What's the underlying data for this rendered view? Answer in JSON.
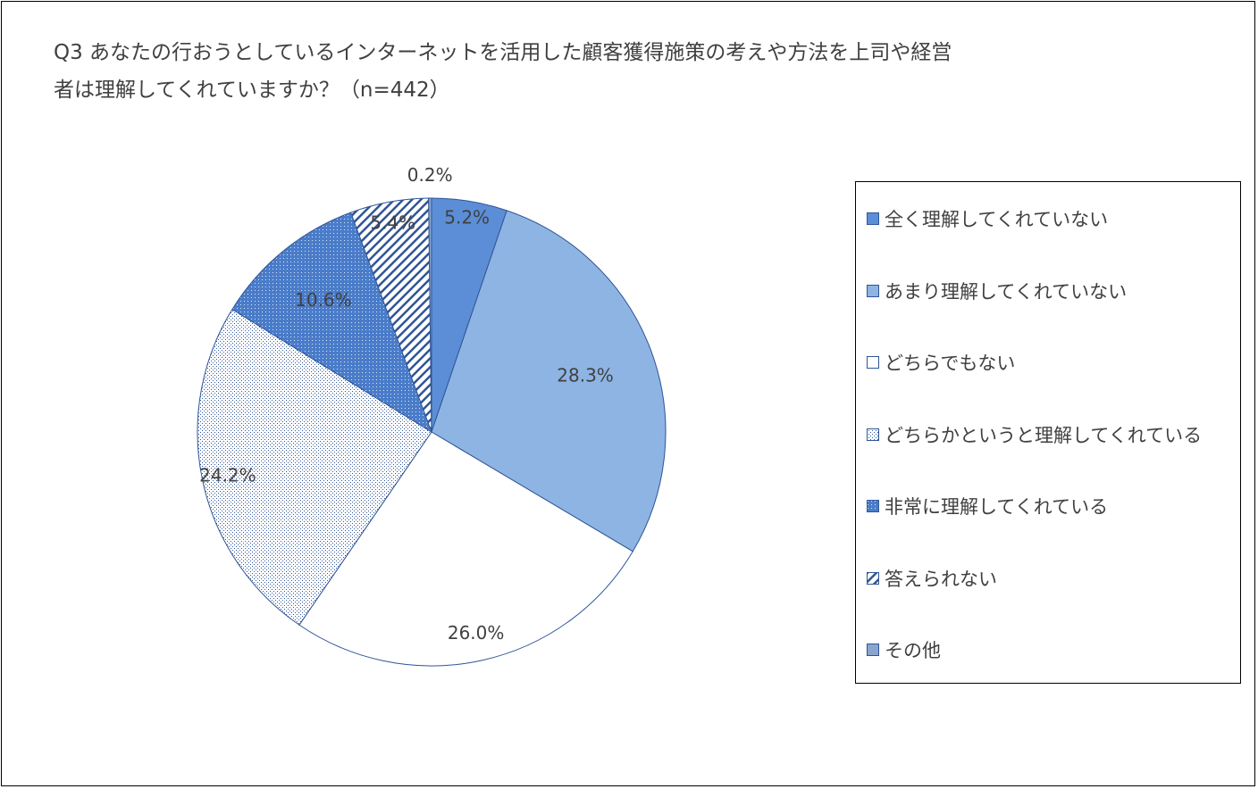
{
  "colors": {
    "outline": "#2f5597",
    "dark_blue": "#5b8ed6",
    "light_blue": "#8eb4e3",
    "white": "#ffffff",
    "pattern_ink": "#2f5597",
    "text": "#404040"
  },
  "chart_data": {
    "type": "pie",
    "title_lines": [
      "Q3 あなたの行おうとしているインターネットを活用した顧客獲得施策の考えや方法を上司や経営",
      "者は理解してくれていますか？（n=442）"
    ],
    "legend_position": "right",
    "slices": [
      {
        "name": "全く理解してくれていない",
        "value": 5.2,
        "label": "5.2%",
        "fill": "solid-dark"
      },
      {
        "name": "あまり理解してくれていない",
        "value": 28.3,
        "label": "28.3%",
        "fill": "solid-light"
      },
      {
        "name": "どちらでもない",
        "value": 26.0,
        "label": "26.0%",
        "fill": "white"
      },
      {
        "name": "どちらかというと理解してくれている",
        "value": 24.2,
        "label": "24.2%",
        "fill": "pattern-fine"
      },
      {
        "name": "非常に理解してくれている",
        "value": 10.6,
        "label": "10.6%",
        "fill": "pattern-dots"
      },
      {
        "name": "答えられない",
        "value": 5.4,
        "label": "5.4%",
        "fill": "pattern-diagonal"
      },
      {
        "name": "その他",
        "value": 0.2,
        "label": "0.2%",
        "fill": "solid-gray"
      }
    ]
  }
}
